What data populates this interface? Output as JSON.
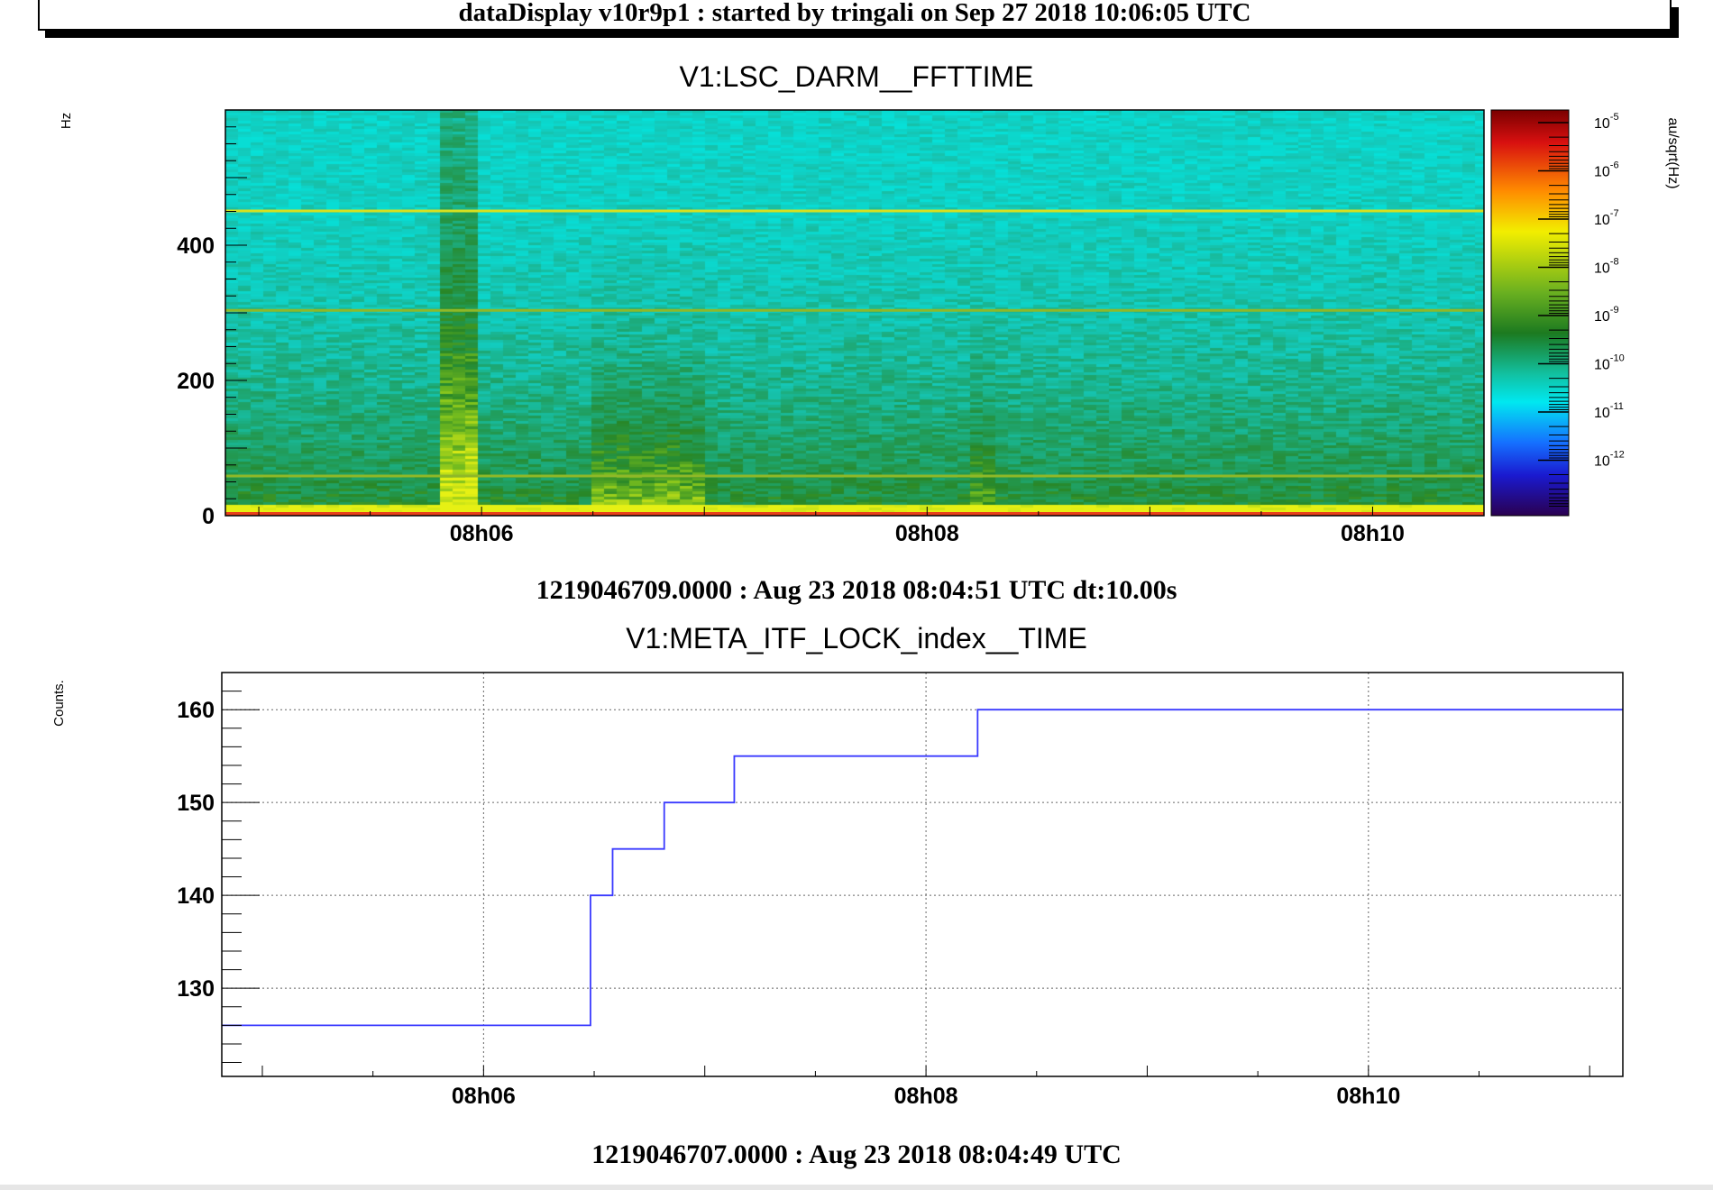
{
  "banner": "dataDisplay v10r9p1 : started by tringali on Sep 27 2018 10:06:05 UTC",
  "chart_data": [
    {
      "type": "heatmap",
      "title": "V1:LSC_DARM__FFTTIME",
      "ylabel": "Hz",
      "ylim": [
        0,
        600
      ],
      "yticks": [
        "0",
        "200",
        "400"
      ],
      "xticks": [
        "08h06",
        "08h08",
        "08h10"
      ],
      "xlim": [
        "08:04:51",
        "08:10:30"
      ],
      "colorbar": {
        "label": "au/sqrt(Hz)",
        "scale": "log",
        "ticks": [
          "10^-5",
          "10^-6",
          "10^-7",
          "10^-8",
          "10^-9",
          "10^-10",
          "10^-11",
          "10^-12"
        ]
      },
      "caption": "1219046709.0000 : Aug 23 2018 08:04:51 UTC dt:10.00s",
      "lines_hz": [
        450,
        303,
        58,
        0
      ]
    },
    {
      "type": "line",
      "step": true,
      "title": "V1:META_ITF_LOCK_index__TIME",
      "ylabel": "Counts.",
      "ylim": [
        120.5,
        164
      ],
      "yticks": [
        "130",
        "140",
        "150",
        "160"
      ],
      "xticks": [
        "08h06",
        "08h08",
        "08h10"
      ],
      "xlim": [
        "08:04:49",
        "08:11:09"
      ],
      "grid": true,
      "color": "#3a3aff",
      "series": [
        {
          "x": [
            "08:04:49",
            "08:06:29",
            "08:06:35",
            "08:06:49",
            "08:07:08",
            "08:08:14",
            "08:11:09"
          ],
          "y": [
            126,
            140,
            145,
            150,
            155,
            160,
            160
          ]
        }
      ],
      "caption": "1219046707.0000 : Aug 23 2018 08:04:49 UTC"
    }
  ]
}
